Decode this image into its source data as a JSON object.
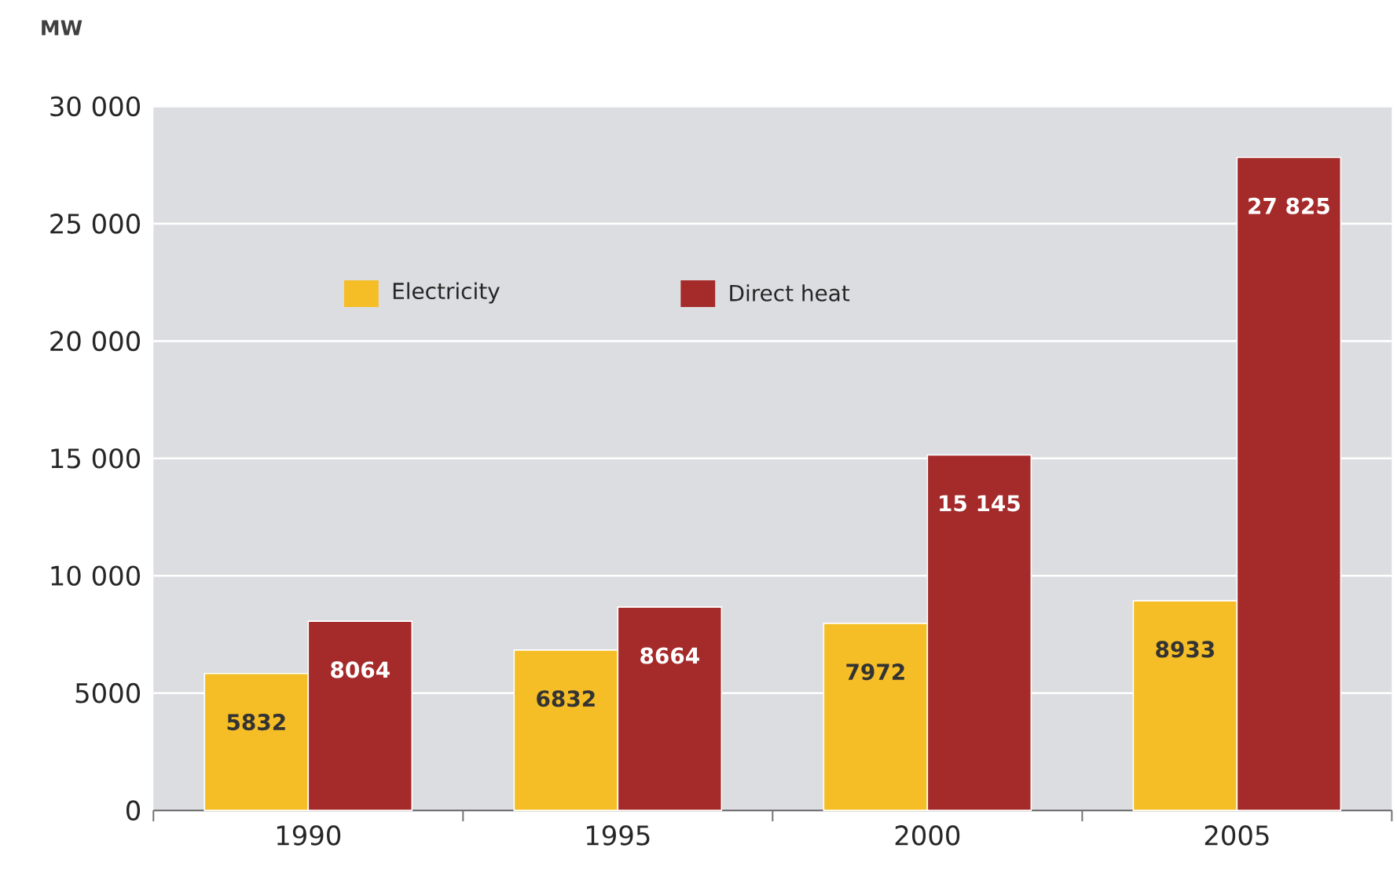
{
  "chart_data": {
    "type": "bar",
    "ylabel": "MW",
    "categories": [
      "1990",
      "1995",
      "2000",
      "2005"
    ],
    "series": [
      {
        "name": "Electricity",
        "color": "#f5be27",
        "values": [
          5832,
          6832,
          7972,
          8933
        ],
        "value_labels": [
          "5832",
          "6832",
          "7972",
          "8933"
        ]
      },
      {
        "name": "Direct heat",
        "color": "#a52a2a",
        "values": [
          8064,
          8664,
          15145,
          27825
        ],
        "value_labels": [
          "8064",
          "8664",
          "15 145",
          "27 825"
        ]
      }
    ],
    "ylim": [
      0,
      30000
    ],
    "yticks": [
      0,
      5000,
      {
        "value": 10000,
        "label": "10 000"
      },
      {
        "value": 15000,
        "label": "15 000"
      },
      {
        "value": 20000,
        "label": "20 000"
      },
      {
        "value": 25000,
        "label": "25 000"
      },
      {
        "value": 30000,
        "label": "30 000"
      }
    ],
    "grid": "y",
    "legend": "top left"
  }
}
